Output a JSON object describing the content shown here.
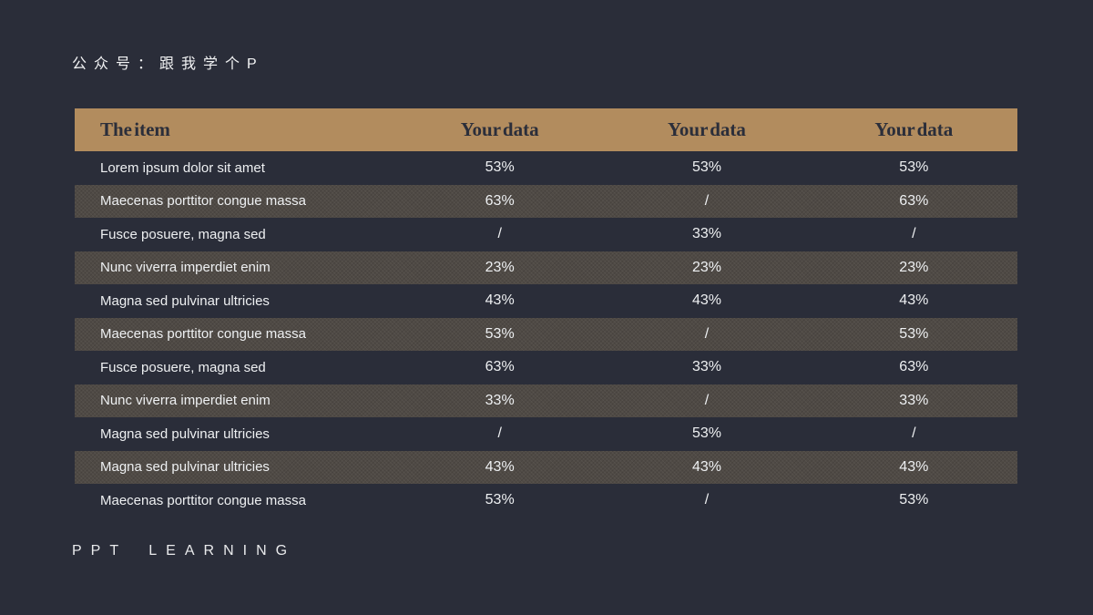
{
  "slide": {
    "watermark_top": "公众号：跟我学个P",
    "watermark_bottom": "PPT LEARNING"
  },
  "colors": {
    "background": "#2a2d39",
    "header_bg": "#b28c5e",
    "header_text": "#2b2e3a",
    "stripe_bg": "#4f4a45",
    "body_text": "#eef0f2"
  },
  "table": {
    "columns": [
      "The item",
      "Your data",
      "Your data",
      "Your data"
    ],
    "rows": [
      {
        "item": "Lorem ipsum dolor sit amet",
        "values": [
          "53%",
          "53%",
          "53%"
        ]
      },
      {
        "item": "Maecenas porttitor congue massa",
        "values": [
          "63%",
          "/",
          "63%"
        ]
      },
      {
        "item": "Fusce posuere, magna sed",
        "values": [
          "/",
          "33%",
          "/"
        ]
      },
      {
        "item": "Nunc viverra imperdiet enim",
        "values": [
          "23%",
          "23%",
          "23%"
        ]
      },
      {
        "item": "Magna sed pulvinar ultricies",
        "values": [
          "43%",
          "43%",
          "43%"
        ]
      },
      {
        "item": "Maecenas porttitor congue massa",
        "values": [
          "53%",
          "/",
          "53%"
        ]
      },
      {
        "item": "Fusce posuere, magna sed",
        "values": [
          "63%",
          "33%",
          "63%"
        ]
      },
      {
        "item": "Nunc viverra imperdiet enim",
        "values": [
          "33%",
          "/",
          "33%"
        ]
      },
      {
        "item": "Magna sed pulvinar ultricies",
        "values": [
          "/",
          "53%",
          "/"
        ]
      },
      {
        "item": "Magna sed pulvinar ultricies",
        "values": [
          "43%",
          "43%",
          "43%"
        ]
      },
      {
        "item": "Maecenas porttitor congue massa",
        "values": [
          "53%",
          "/",
          "53%"
        ]
      }
    ]
  }
}
